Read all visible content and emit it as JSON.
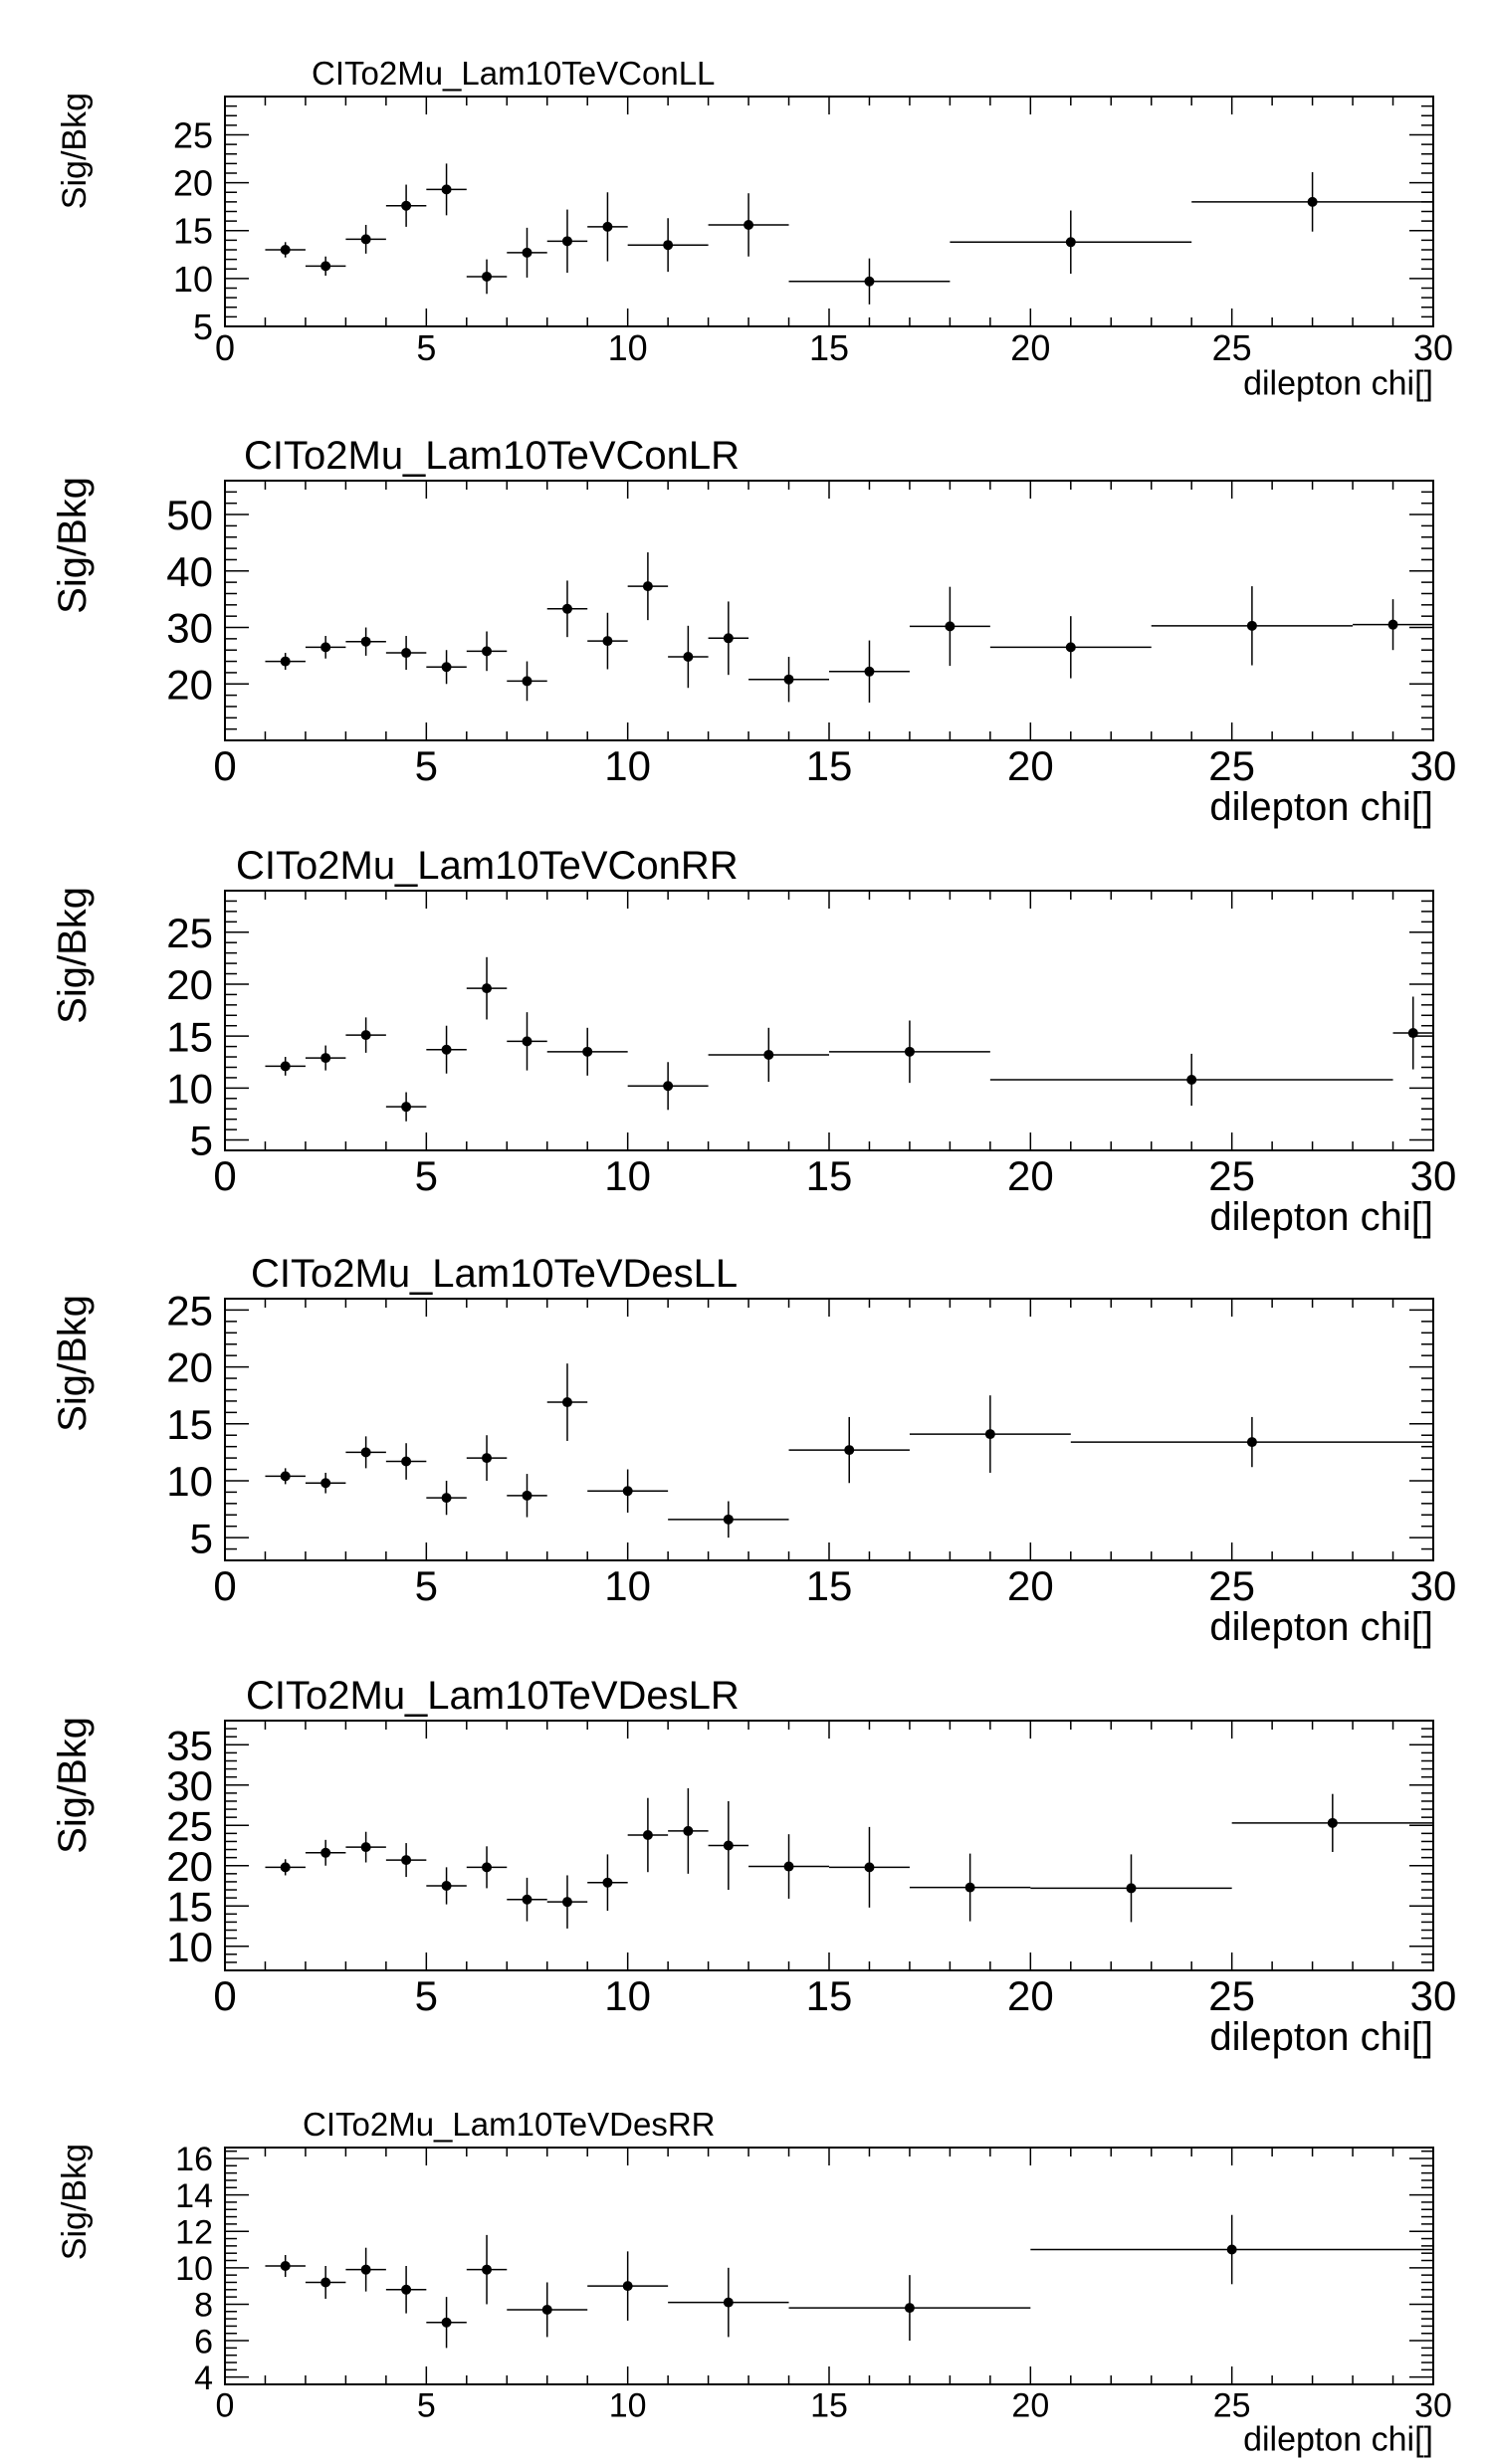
{
  "chart_data": [
    {
      "type": "scatter",
      "title": "CITo2Mu_Lam10TeVConLL",
      "xlabel": "dilepton chi[]",
      "ylabel": "Sig/Bkg",
      "xlim": [
        0,
        30
      ],
      "ylim": [
        5,
        29
      ],
      "xticks": [
        "0",
        "5",
        "10",
        "15",
        "20",
        "25",
        "30"
      ],
      "yticks": [
        "5",
        "10",
        "15",
        "20",
        "25"
      ],
      "series": [
        {
          "points": [
            {
              "x": 1.5,
              "y": 13.0,
              "xlo": 1,
              "xhi": 2,
              "err": 0.8
            },
            {
              "x": 2.5,
              "y": 11.3,
              "xlo": 2,
              "xhi": 3,
              "err": 1.0
            },
            {
              "x": 3.5,
              "y": 14.1,
              "xlo": 3,
              "xhi": 4,
              "err": 1.5
            },
            {
              "x": 4.5,
              "y": 17.6,
              "xlo": 4,
              "xhi": 5,
              "err": 2.2
            },
            {
              "x": 5.5,
              "y": 19.3,
              "xlo": 5,
              "xhi": 6,
              "err": 2.7
            },
            {
              "x": 6.5,
              "y": 10.2,
              "xlo": 6,
              "xhi": 7,
              "err": 1.8
            },
            {
              "x": 7.5,
              "y": 12.7,
              "xlo": 7,
              "xhi": 8,
              "err": 2.6
            },
            {
              "x": 8.5,
              "y": 13.9,
              "xlo": 8,
              "xhi": 9,
              "err": 3.3
            },
            {
              "x": 9.5,
              "y": 15.4,
              "xlo": 9,
              "xhi": 10,
              "err": 3.6
            },
            {
              "x": 11.0,
              "y": 13.5,
              "xlo": 10,
              "xhi": 12,
              "err": 2.8
            },
            {
              "x": 13.0,
              "y": 15.6,
              "xlo": 12,
              "xhi": 14,
              "err": 3.3
            },
            {
              "x": 16.0,
              "y": 9.7,
              "xlo": 14,
              "xhi": 18,
              "err": 2.4
            },
            {
              "x": 21.0,
              "y": 13.8,
              "xlo": 18,
              "xhi": 24,
              "err": 3.3
            },
            {
              "x": 27.0,
              "y": 18.0,
              "xlo": 24,
              "xhi": 30,
              "err": 3.1
            }
          ]
        }
      ]
    },
    {
      "type": "scatter",
      "title": "CITo2Mu_Lam10TeVConLR",
      "xlabel": "dilepton chi[]",
      "ylabel": "Sig/Bkg",
      "xlim": [
        0,
        30
      ],
      "ylim": [
        10,
        56
      ],
      "xticks": [
        "0",
        "5",
        "10",
        "15",
        "20",
        "25",
        "30"
      ],
      "yticks": [
        "20",
        "30",
        "40",
        "50"
      ],
      "series": [
        {
          "points": [
            {
              "x": 1.5,
              "y": 24.0,
              "xlo": 1,
              "xhi": 2,
              "err": 1.5
            },
            {
              "x": 2.5,
              "y": 26.5,
              "xlo": 2,
              "xhi": 3,
              "err": 2.0
            },
            {
              "x": 3.5,
              "y": 27.5,
              "xlo": 3,
              "xhi": 4,
              "err": 2.5
            },
            {
              "x": 4.5,
              "y": 25.5,
              "xlo": 4,
              "xhi": 5,
              "err": 3.0
            },
            {
              "x": 5.5,
              "y": 23.0,
              "xlo": 5,
              "xhi": 6,
              "err": 3.0
            },
            {
              "x": 6.5,
              "y": 25.8,
              "xlo": 6,
              "xhi": 7,
              "err": 3.5
            },
            {
              "x": 7.5,
              "y": 20.5,
              "xlo": 7,
              "xhi": 8,
              "err": 3.5
            },
            {
              "x": 8.5,
              "y": 33.3,
              "xlo": 8,
              "xhi": 9,
              "err": 5.0
            },
            {
              "x": 9.5,
              "y": 27.6,
              "xlo": 9,
              "xhi": 10,
              "err": 5.0
            },
            {
              "x": 10.5,
              "y": 37.3,
              "xlo": 10,
              "xhi": 11,
              "err": 6.0
            },
            {
              "x": 11.5,
              "y": 24.8,
              "xlo": 11,
              "xhi": 12,
              "err": 5.5
            },
            {
              "x": 12.5,
              "y": 28.1,
              "xlo": 12,
              "xhi": 13,
              "err": 6.5
            },
            {
              "x": 14.0,
              "y": 20.8,
              "xlo": 13,
              "xhi": 15,
              "err": 4.0
            },
            {
              "x": 16.0,
              "y": 22.2,
              "xlo": 15,
              "xhi": 17,
              "err": 5.5
            },
            {
              "x": 18.0,
              "y": 30.2,
              "xlo": 17,
              "xhi": 19,
              "err": 7.0
            },
            {
              "x": 21.0,
              "y": 26.5,
              "xlo": 19,
              "xhi": 23,
              "err": 5.5
            },
            {
              "x": 25.5,
              "y": 30.3,
              "xlo": 23,
              "xhi": 28,
              "err": 7.0
            },
            {
              "x": 29.0,
              "y": 30.5,
              "xlo": 28,
              "xhi": 30,
              "err": 4.5
            }
          ]
        }
      ]
    },
    {
      "type": "scatter",
      "title": "CITo2Mu_Lam10TeVConRR",
      "xlabel": "dilepton chi[]",
      "ylabel": "Sig/Bkg",
      "xlim": [
        0,
        30
      ],
      "ylim": [
        4,
        29
      ],
      "xticks": [
        "0",
        "5",
        "10",
        "15",
        "20",
        "25",
        "30"
      ],
      "yticks": [
        "5",
        "10",
        "15",
        "20",
        "25"
      ],
      "series": [
        {
          "points": [
            {
              "x": 1.5,
              "y": 12.1,
              "xlo": 1,
              "xhi": 2,
              "err": 0.9
            },
            {
              "x": 2.5,
              "y": 12.9,
              "xlo": 2,
              "xhi": 3,
              "err": 1.2
            },
            {
              "x": 3.5,
              "y": 15.1,
              "xlo": 3,
              "xhi": 4,
              "err": 1.7
            },
            {
              "x": 4.5,
              "y": 8.2,
              "xlo": 4,
              "xhi": 5,
              "err": 1.4
            },
            {
              "x": 5.5,
              "y": 13.7,
              "xlo": 5,
              "xhi": 6,
              "err": 2.3
            },
            {
              "x": 6.5,
              "y": 19.6,
              "xlo": 6,
              "xhi": 7,
              "err": 3.0
            },
            {
              "x": 7.5,
              "y": 14.5,
              "xlo": 7,
              "xhi": 8,
              "err": 2.8
            },
            {
              "x": 9.0,
              "y": 13.5,
              "xlo": 8,
              "xhi": 10,
              "err": 2.3
            },
            {
              "x": 11.0,
              "y": 10.2,
              "xlo": 10,
              "xhi": 12,
              "err": 2.3
            },
            {
              "x": 13.5,
              "y": 13.2,
              "xlo": 12,
              "xhi": 15,
              "err": 2.6
            },
            {
              "x": 17.0,
              "y": 13.5,
              "xlo": 15,
              "xhi": 19,
              "err": 3.0
            },
            {
              "x": 24.0,
              "y": 10.8,
              "xlo": 19,
              "xhi": 29,
              "err": 2.5
            },
            {
              "x": 29.5,
              "y": 15.3,
              "xlo": 29,
              "xhi": 30,
              "err": 3.5
            }
          ]
        }
      ]
    },
    {
      "type": "scatter",
      "title": "CITo2Mu_Lam10TeVDesLL",
      "xlabel": "dilepton chi[]",
      "ylabel": "Sig/Bkg",
      "xlim": [
        0,
        30
      ],
      "ylim": [
        3,
        26
      ],
      "xticks": [
        "0",
        "5",
        "10",
        "15",
        "20",
        "25",
        "30"
      ],
      "yticks": [
        "5",
        "10",
        "15",
        "20",
        "25"
      ],
      "series": [
        {
          "points": [
            {
              "x": 1.5,
              "y": 10.4,
              "xlo": 1,
              "xhi": 2,
              "err": 0.7
            },
            {
              "x": 2.5,
              "y": 9.8,
              "xlo": 2,
              "xhi": 3,
              "err": 0.9
            },
            {
              "x": 3.5,
              "y": 12.5,
              "xlo": 3,
              "xhi": 4,
              "err": 1.4
            },
            {
              "x": 4.5,
              "y": 11.7,
              "xlo": 4,
              "xhi": 5,
              "err": 1.6
            },
            {
              "x": 5.5,
              "y": 8.5,
              "xlo": 5,
              "xhi": 6,
              "err": 1.5
            },
            {
              "x": 6.5,
              "y": 12.0,
              "xlo": 6,
              "xhi": 7,
              "err": 2.0
            },
            {
              "x": 7.5,
              "y": 8.7,
              "xlo": 7,
              "xhi": 8,
              "err": 1.9
            },
            {
              "x": 8.5,
              "y": 16.9,
              "xlo": 8,
              "xhi": 9,
              "err": 3.4
            },
            {
              "x": 10.0,
              "y": 9.1,
              "xlo": 9,
              "xhi": 11,
              "err": 1.9
            },
            {
              "x": 12.5,
              "y": 6.6,
              "xlo": 11,
              "xhi": 14,
              "err": 1.6
            },
            {
              "x": 15.5,
              "y": 12.7,
              "xlo": 14,
              "xhi": 17,
              "err": 2.9
            },
            {
              "x": 19.0,
              "y": 14.1,
              "xlo": 17,
              "xhi": 21,
              "err": 3.4
            },
            {
              "x": 25.5,
              "y": 13.4,
              "xlo": 21,
              "xhi": 30,
              "err": 2.2
            }
          ]
        }
      ]
    },
    {
      "type": "scatter",
      "title": "CITo2Mu_Lam10TeVDesLR",
      "xlabel": "dilepton chi[]",
      "ylabel": "Sig/Bkg",
      "xlim": [
        0,
        30
      ],
      "ylim": [
        7,
        38
      ],
      "xticks": [
        "0",
        "5",
        "10",
        "15",
        "20",
        "25",
        "30"
      ],
      "yticks": [
        "10",
        "15",
        "20",
        "25",
        "30",
        "35"
      ],
      "series": [
        {
          "points": [
            {
              "x": 1.5,
              "y": 19.8,
              "xlo": 1,
              "xhi": 2,
              "err": 1.0
            },
            {
              "x": 2.5,
              "y": 21.6,
              "xlo": 2,
              "xhi": 3,
              "err": 1.6
            },
            {
              "x": 3.5,
              "y": 22.3,
              "xlo": 3,
              "xhi": 4,
              "err": 1.9
            },
            {
              "x": 4.5,
              "y": 20.7,
              "xlo": 4,
              "xhi": 5,
              "err": 2.1
            },
            {
              "x": 5.5,
              "y": 17.5,
              "xlo": 5,
              "xhi": 6,
              "err": 2.3
            },
            {
              "x": 6.5,
              "y": 19.8,
              "xlo": 6,
              "xhi": 7,
              "err": 2.6
            },
            {
              "x": 7.5,
              "y": 15.8,
              "xlo": 7,
              "xhi": 8,
              "err": 2.7
            },
            {
              "x": 8.5,
              "y": 15.5,
              "xlo": 8,
              "xhi": 9,
              "err": 3.3
            },
            {
              "x": 9.5,
              "y": 17.9,
              "xlo": 9,
              "xhi": 10,
              "err": 3.5
            },
            {
              "x": 10.5,
              "y": 23.8,
              "xlo": 10,
              "xhi": 11,
              "err": 4.6
            },
            {
              "x": 11.5,
              "y": 24.3,
              "xlo": 11,
              "xhi": 12,
              "err": 5.3
            },
            {
              "x": 12.5,
              "y": 22.5,
              "xlo": 12,
              "xhi": 13,
              "err": 5.5
            },
            {
              "x": 14.0,
              "y": 19.9,
              "xlo": 13,
              "xhi": 15,
              "err": 4.0
            },
            {
              "x": 16.0,
              "y": 19.8,
              "xlo": 15,
              "xhi": 17,
              "err": 5.0
            },
            {
              "x": 18.5,
              "y": 17.3,
              "xlo": 17,
              "xhi": 20,
              "err": 4.2
            },
            {
              "x": 22.5,
              "y": 17.2,
              "xlo": 20,
              "xhi": 25,
              "err": 4.2
            },
            {
              "x": 27.5,
              "y": 25.3,
              "xlo": 25,
              "xhi": 30,
              "err": 3.6
            }
          ]
        }
      ]
    },
    {
      "type": "scatter",
      "title": "CITo2Mu_Lam10TeVDesRR",
      "xlabel": "dilepton chi[]",
      "ylabel": "Sig/Bkg",
      "xlim": [
        0,
        30
      ],
      "ylim": [
        3.6,
        16.6
      ],
      "xticks": [
        "0",
        "5",
        "10",
        "15",
        "20",
        "25",
        "30"
      ],
      "yticks": [
        "4",
        "6",
        "8",
        "10",
        "12",
        "14",
        "16"
      ],
      "series": [
        {
          "points": [
            {
              "x": 1.5,
              "y": 10.1,
              "xlo": 1,
              "xhi": 2,
              "err": 0.6
            },
            {
              "x": 2.5,
              "y": 9.2,
              "xlo": 2,
              "xhi": 3,
              "err": 0.9
            },
            {
              "x": 3.5,
              "y": 9.9,
              "xlo": 3,
              "xhi": 4,
              "err": 1.2
            },
            {
              "x": 4.5,
              "y": 8.8,
              "xlo": 4,
              "xhi": 5,
              "err": 1.3
            },
            {
              "x": 5.5,
              "y": 7.0,
              "xlo": 5,
              "xhi": 6,
              "err": 1.4
            },
            {
              "x": 6.5,
              "y": 9.9,
              "xlo": 6,
              "xhi": 7,
              "err": 1.9
            },
            {
              "x": 8.0,
              "y": 7.7,
              "xlo": 7,
              "xhi": 9,
              "err": 1.5
            },
            {
              "x": 10.0,
              "y": 9.0,
              "xlo": 9,
              "xhi": 11,
              "err": 1.9
            },
            {
              "x": 12.5,
              "y": 8.1,
              "xlo": 11,
              "xhi": 14,
              "err": 1.9
            },
            {
              "x": 17.0,
              "y": 7.8,
              "xlo": 14,
              "xhi": 20,
              "err": 1.8
            },
            {
              "x": 25.0,
              "y": 11.0,
              "xlo": 20,
              "xhi": 30,
              "err": 1.9
            }
          ]
        }
      ]
    }
  ]
}
